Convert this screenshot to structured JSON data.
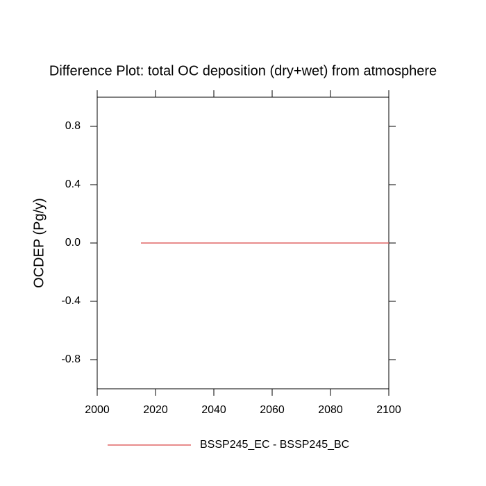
{
  "chart_data": {
    "type": "line",
    "title": "Difference Plot: total OC deposition (dry+wet) from atmosphere",
    "y_label": "OCDEP  (Pg/y)",
    "x": [
      2015,
      2100
    ],
    "series": [
      {
        "name": "BSSP245_EC - BSSP245_BC",
        "color": "#e06666",
        "values": [
          0,
          0
        ]
      }
    ],
    "xlim": [
      2000,
      2100
    ],
    "xticks": [
      2000,
      2020,
      2040,
      2060,
      2080,
      2100
    ],
    "ylim": [
      -1,
      1
    ],
    "yticks": [
      -0.8,
      -0.4,
      {
        "value": 0,
        "label": "0.0"
      },
      0.4,
      0.8
    ],
    "grid": false,
    "legend": "bottom"
  }
}
